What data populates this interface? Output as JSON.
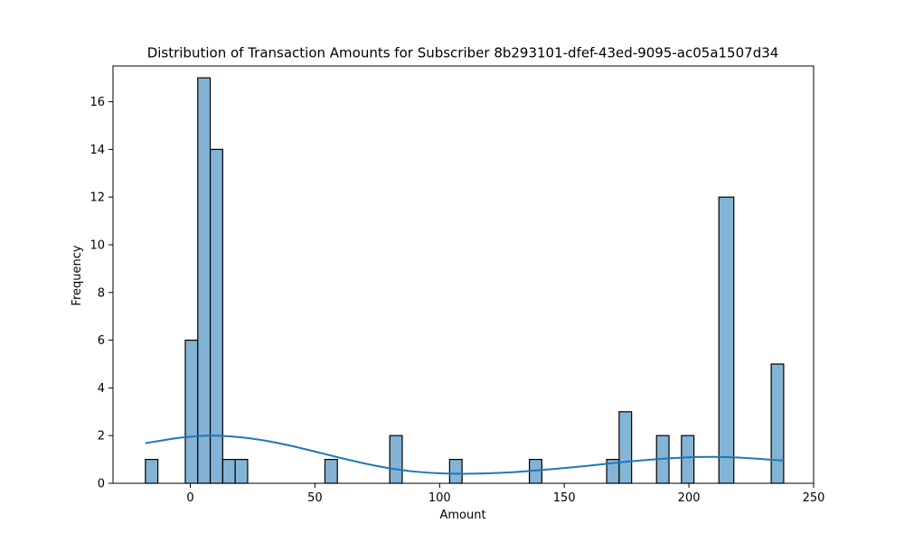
{
  "chart_data": {
    "type": "bar",
    "title": "Distribution of Transaction Amounts for Subscriber 8b293101-dfef-43ed-9095-ac05a1507d34",
    "xlabel": "Amount",
    "ylabel": "Frequency",
    "xlim": [
      -31,
      250
    ],
    "ylim": [
      0,
      17.5
    ],
    "x_ticks": [
      0,
      50,
      100,
      150,
      200,
      250
    ],
    "y_ticks": [
      0,
      2,
      4,
      6,
      8,
      10,
      12,
      14,
      16
    ],
    "grid": false,
    "legend": "none",
    "bin_width": 5,
    "bins": [
      {
        "start": -18,
        "end": -13,
        "count": 1
      },
      {
        "start": -2,
        "end": 3,
        "count": 6
      },
      {
        "start": 3,
        "end": 8,
        "count": 17
      },
      {
        "start": 8,
        "end": 13,
        "count": 14
      },
      {
        "start": 13,
        "end": 18,
        "count": 1
      },
      {
        "start": 18,
        "end": 23,
        "count": 1
      },
      {
        "start": 54,
        "end": 59,
        "count": 1
      },
      {
        "start": 80,
        "end": 85,
        "count": 2
      },
      {
        "start": 104,
        "end": 109,
        "count": 1
      },
      {
        "start": 136,
        "end": 141,
        "count": 1
      },
      {
        "start": 167,
        "end": 172,
        "count": 1
      },
      {
        "start": 172,
        "end": 177,
        "count": 3
      },
      {
        "start": 187,
        "end": 192,
        "count": 2
      },
      {
        "start": 197,
        "end": 202,
        "count": 2
      },
      {
        "start": 212,
        "end": 218,
        "count": 12
      },
      {
        "start": 233,
        "end": 238,
        "count": 5
      }
    ],
    "kde": {
      "x": [
        -18,
        -5,
        5,
        10,
        20,
        30,
        40,
        50,
        60,
        70,
        80,
        90,
        100,
        110,
        120,
        130,
        140,
        150,
        160,
        170,
        180,
        190,
        200,
        210,
        220,
        230,
        238
      ],
      "y": [
        1.68,
        1.9,
        1.99,
        2.0,
        1.93,
        1.79,
        1.58,
        1.33,
        1.07,
        0.83,
        0.63,
        0.49,
        0.42,
        0.4,
        0.42,
        0.47,
        0.55,
        0.64,
        0.74,
        0.85,
        0.95,
        1.03,
        1.09,
        1.11,
        1.08,
        1.01,
        0.95
      ]
    },
    "colors": {
      "bar_fill": "#83b4d6",
      "bar_edge": "#000000",
      "kde_line": "#1f77b4"
    }
  }
}
